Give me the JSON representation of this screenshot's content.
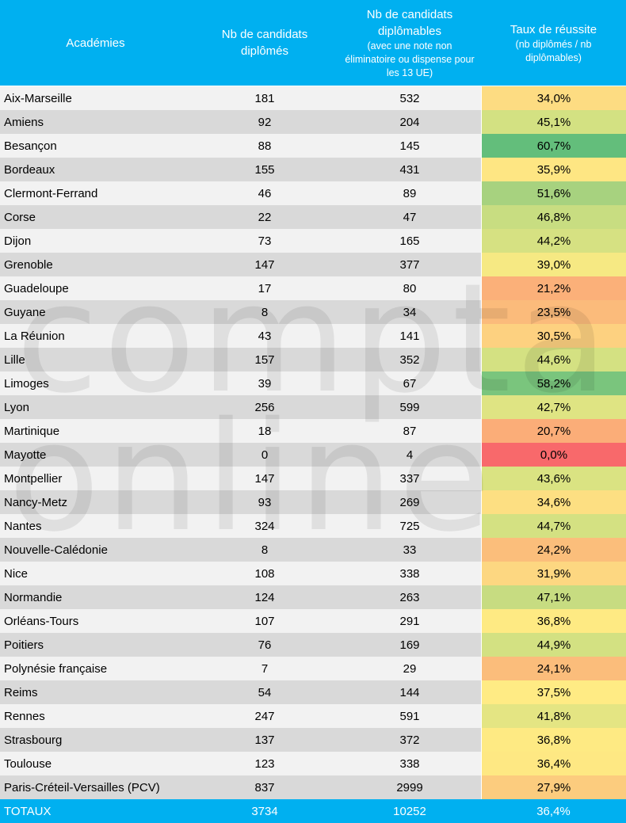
{
  "header": {
    "col1": "Académies",
    "col2": "Nb de candidats diplômés",
    "col3_main": "Nb de candidats diplômables",
    "col3_sub": "(avec une note non éliminatoire ou dispense pour les 13 UE)",
    "col4_main": "Taux de réussite",
    "col4_sub": "(nb diplômés / nb diplômables)"
  },
  "rows": [
    {
      "academie": "Aix-Marseille",
      "diplomes": "181",
      "diplomables": "532",
      "taux": "34,0%",
      "color": "#fddc82"
    },
    {
      "academie": "Amiens",
      "diplomes": "92",
      "diplomables": "204",
      "taux": "45,1%",
      "color": "#d3e182"
    },
    {
      "academie": "Besançon",
      "diplomes": "88",
      "diplomables": "145",
      "taux": "60,7%",
      "color": "#63be7b"
    },
    {
      "academie": "Bordeaux",
      "diplomes": "155",
      "diplomables": "431",
      "taux": "35,9%",
      "color": "#fee683"
    },
    {
      "academie": "Clermont-Ferrand",
      "diplomes": "46",
      "diplomables": "89",
      "taux": "51,6%",
      "color": "#a7d27f"
    },
    {
      "academie": "Corse",
      "diplomes": "22",
      "diplomables": "47",
      "taux": "46,8%",
      "color": "#c8dd81"
    },
    {
      "academie": "Dijon",
      "diplomes": "73",
      "diplomables": "165",
      "taux": "44,2%",
      "color": "#d6e182"
    },
    {
      "academie": "Grenoble",
      "diplomes": "147",
      "diplomables": "377",
      "taux": "39,0%",
      "color": "#f6e983"
    },
    {
      "academie": "Guadeloupe",
      "diplomes": "17",
      "diplomables": "80",
      "taux": "21,2%",
      "color": "#fbb079"
    },
    {
      "academie": "Guyane",
      "diplomes": "8",
      "diplomables": "34",
      "taux": "23,5%",
      "color": "#fbbb7b"
    },
    {
      "academie": "La Réunion",
      "diplomes": "43",
      "diplomables": "141",
      "taux": "30,5%",
      "color": "#fdd180"
    },
    {
      "academie": "Lille",
      "diplomes": "157",
      "diplomables": "352",
      "taux": "44,6%",
      "color": "#d4e182"
    },
    {
      "academie": "Limoges",
      "diplomes": "39",
      "diplomables": "67",
      "taux": "58,2%",
      "color": "#7ac57d"
    },
    {
      "academie": "Lyon",
      "diplomes": "256",
      "diplomables": "599",
      "taux": "42,7%",
      "color": "#dfe483"
    },
    {
      "academie": "Martinique",
      "diplomes": "18",
      "diplomables": "87",
      "taux": "20,7%",
      "color": "#fbad78"
    },
    {
      "academie": "Mayotte",
      "diplomes": "0",
      "diplomables": "4",
      "taux": "0,0%",
      "color": "#f8696b"
    },
    {
      "academie": "Montpellier",
      "diplomes": "147",
      "diplomables": "337",
      "taux": "43,6%",
      "color": "#dae382"
    },
    {
      "academie": "Nancy-Metz",
      "diplomes": "93",
      "diplomables": "269",
      "taux": "34,6%",
      "color": "#fddf82"
    },
    {
      "academie": "Nantes",
      "diplomes": "324",
      "diplomables": "725",
      "taux": "44,7%",
      "color": "#d4e182"
    },
    {
      "academie": "Nouvelle-Calédonie",
      "diplomes": "8",
      "diplomables": "33",
      "taux": "24,2%",
      "color": "#fbbe7b"
    },
    {
      "academie": "Nice",
      "diplomes": "108",
      "diplomables": "338",
      "taux": "31,9%",
      "color": "#fdd781"
    },
    {
      "academie": "Normandie",
      "diplomes": "124",
      "diplomables": "263",
      "taux": "47,1%",
      "color": "#c7dc81"
    },
    {
      "academie": "Orléans-Tours",
      "diplomes": "107",
      "diplomables": "291",
      "taux": "36,8%",
      "color": "#feea83"
    },
    {
      "academie": "Poitiers",
      "diplomes": "76",
      "diplomables": "169",
      "taux": "44,9%",
      "color": "#d3e182"
    },
    {
      "academie": "Polynésie française",
      "diplomes": "7",
      "diplomables": "29",
      "taux": "24,1%",
      "color": "#fbbd7b"
    },
    {
      "academie": "Reims",
      "diplomes": "54",
      "diplomables": "144",
      "taux": "37,5%",
      "color": "#ffeb84"
    },
    {
      "academie": "Rennes",
      "diplomes": "247",
      "diplomables": "591",
      "taux": "41,8%",
      "color": "#e4e583"
    },
    {
      "academie": "Strasbourg",
      "diplomes": "137",
      "diplomables": "372",
      "taux": "36,8%",
      "color": "#feea83"
    },
    {
      "academie": "Toulouse",
      "diplomes": "123",
      "diplomables": "338",
      "taux": "36,4%",
      "color": "#fee883"
    },
    {
      "academie": "Paris-Créteil-Versailles (PCV)",
      "diplomes": "837",
      "diplomables": "2999",
      "taux": "27,9%",
      "color": "#fccc7e"
    }
  ],
  "totals": {
    "label": "TOTAUX",
    "diplomes": "3734",
    "diplomables": "10252",
    "taux": "36,4%"
  },
  "watermark": {
    "line1": "compta",
    "line2": "online"
  },
  "colors": {
    "header_bg": "#00b0f0",
    "row_odd": "#f2f2f2",
    "row_even": "#d9d9d9"
  }
}
